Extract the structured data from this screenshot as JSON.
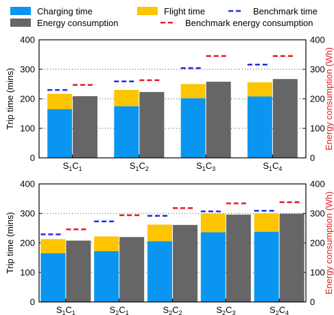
{
  "legend": {
    "charging": "Charging time",
    "flight": "Flight time",
    "benchmark_time": "Benchmark time",
    "energy": "Energy consumption",
    "benchmark_energy": "Benchmark energy consumption"
  },
  "colors": {
    "charging": "#0a96f0",
    "flight": "#fcc500",
    "energy": "#666666",
    "benchmark_time": "#1f2bd9",
    "benchmark_energy": "#e8181f",
    "right_axis": "#e8181f"
  },
  "chart_data": [
    {
      "type": "bar",
      "panel": "top",
      "ylabel": "Trip time (mins)",
      "y2label": "Energy consumption (Wh)",
      "ylim": [
        0,
        400
      ],
      "y2lim": [
        0,
        400
      ],
      "yticks": [
        "0",
        "100",
        "200",
        "300",
        "400"
      ],
      "y2ticks": [
        "0",
        "100",
        "200",
        "300",
        "400"
      ],
      "grid": "horizontal dotted",
      "categories": [
        {
          "main": "S",
          "sub1": "1",
          "mid": "C",
          "sub2": "1"
        },
        {
          "main": "S",
          "sub1": "1",
          "mid": "C",
          "sub2": "2"
        },
        {
          "main": "S",
          "sub1": "1",
          "mid": "C",
          "sub2": "3"
        },
        {
          "main": "S",
          "sub1": "1",
          "mid": "C",
          "sub2": "4"
        }
      ],
      "charging_time": [
        165,
        175,
        202,
        208
      ],
      "flight_time": [
        52,
        55,
        48,
        48
      ],
      "energy_consumption": [
        209,
        223,
        258,
        267
      ],
      "benchmark_time": [
        230,
        259,
        304,
        316
      ],
      "benchmark_energy": [
        247,
        263,
        345,
        345
      ]
    },
    {
      "type": "bar",
      "panel": "bottom",
      "ylabel": "Trip time (mins)",
      "y2label": "Energy consumption (Wh)",
      "ylim": [
        0,
        400
      ],
      "y2lim": [
        0,
        400
      ],
      "yticks": [
        "0",
        "100",
        "200",
        "300",
        "400"
      ],
      "y2ticks": [
        "0",
        "100",
        "200",
        "300",
        "400"
      ],
      "grid": "horizontal dotted",
      "categories": [
        {
          "main": "S",
          "sub1": "1",
          "mid": "C",
          "sub2": "1"
        },
        {
          "main": "S",
          "sub1": "2",
          "mid": "C",
          "sub2": "1"
        },
        {
          "main": "S",
          "sub1": "2",
          "mid": "C",
          "sub2": "2"
        },
        {
          "main": "S",
          "sub1": "2",
          "mid": "C",
          "sub2": "3"
        },
        {
          "main": "S",
          "sub1": "2",
          "mid": "C",
          "sub2": "4"
        }
      ],
      "charging_time": [
        165,
        172,
        206,
        236,
        238
      ],
      "flight_time": [
        48,
        50,
        56,
        63,
        62
      ],
      "energy_consumption": [
        208,
        220,
        261,
        296,
        299
      ],
      "benchmark_time": [
        229,
        273,
        292,
        307,
        309
      ],
      "benchmark_energy": [
        246,
        294,
        318,
        334,
        338
      ]
    }
  ]
}
